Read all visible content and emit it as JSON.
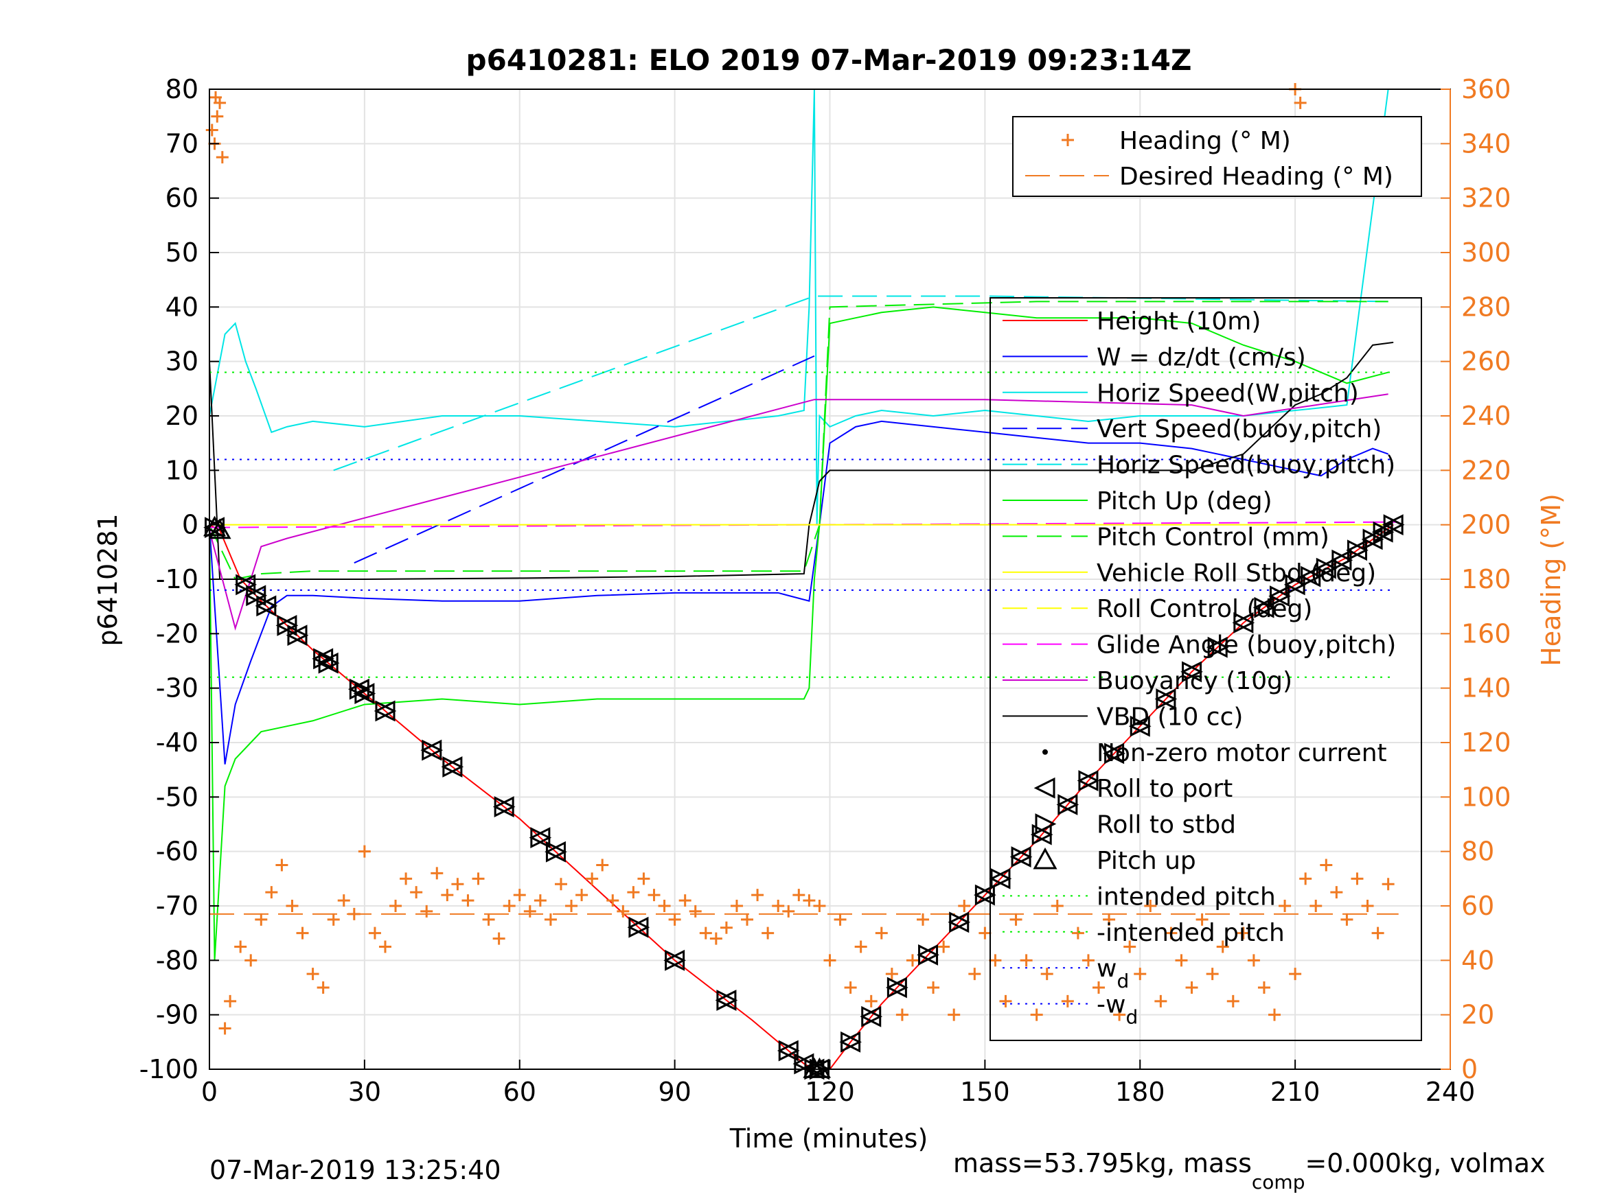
{
  "chart_data": {
    "type": "line",
    "title": "p6410281: ELO 2019 07-Mar-2019 09:23:14Z",
    "xlabel": "Time (minutes)",
    "ylabel_left": "p6410281",
    "ylabel_right": "Heading (°M)",
    "xlim": [
      0,
      240
    ],
    "ylim_left": [
      -100,
      80
    ],
    "ylim_right": [
      0,
      360
    ],
    "x_ticks": [
      "0",
      "30",
      "60",
      "90",
      "120",
      "150",
      "180",
      "210",
      "240"
    ],
    "y_ticks_left": [
      "80",
      "70",
      "60",
      "50",
      "40",
      "30",
      "20",
      "10",
      "0",
      "-10",
      "-20",
      "-30",
      "-40",
      "-50",
      "-60",
      "-70",
      "-80",
      "-90",
      "-100"
    ],
    "y_ticks_right": [
      "360",
      "340",
      "320",
      "300",
      "280",
      "260",
      "240",
      "220",
      "200",
      "180",
      "160",
      "140",
      "120",
      "100",
      "80",
      "60",
      "40",
      "20",
      "0"
    ],
    "grid": true,
    "footer_left": "07-Mar-2019 13:25:40",
    "footer_right_parts": [
      "mass=53.795kg, mass",
      "comp",
      "=0.000kg, volmax"
    ],
    "legend_heading": {
      "placement": "top-right",
      "entries": [
        {
          "label": "Heading (° M)",
          "color": "#f07a22",
          "style": "plus"
        },
        {
          "label": "Desired Heading (° M)",
          "color": "#f07a22",
          "style": "dash"
        }
      ]
    },
    "legend_main": {
      "placement": "right",
      "entries": [
        {
          "label": "Height (10m)",
          "color": "#ff0000",
          "style": "solid"
        },
        {
          "label": "W = dz/dt (cm/s)",
          "color": "#0000ff",
          "style": "solid"
        },
        {
          "label": "Horiz Speed(W,pitch)",
          "color": "#00e5e5",
          "style": "solid"
        },
        {
          "label": "Vert Speed(buoy,pitch)",
          "color": "#0000ff",
          "style": "dash"
        },
        {
          "label": "Horiz Speed(buoy,pitch)",
          "color": "#00e5e5",
          "style": "dash"
        },
        {
          "label": "Pitch Up (deg)",
          "color": "#00ee00",
          "style": "solid"
        },
        {
          "label": "Pitch Control (mm)",
          "color": "#00ee00",
          "style": "dash"
        },
        {
          "label": "Vehicle Roll Stbd (deg)",
          "color": "#ffff00",
          "style": "solid"
        },
        {
          "label": "Roll Control (deg)",
          "color": "#ffff00",
          "style": "dash"
        },
        {
          "label": "Glide Angle (buoy,pitch)",
          "color": "#ff00ff",
          "style": "dash"
        },
        {
          "label": "Buoyancy (10g)",
          "color": "#cc00cc",
          "style": "solid"
        },
        {
          "label": "VBD (10 cc)",
          "color": "#000000",
          "style": "solid"
        },
        {
          "label": "Non-zero motor current",
          "color": "#000000",
          "style": "dot"
        },
        {
          "label": "Roll to port",
          "color": "#000000",
          "style": "tri-left"
        },
        {
          "label": "Roll to stbd",
          "color": "#000000",
          "style": "tri-right"
        },
        {
          "label": "Pitch up",
          "color": "#000000",
          "style": "tri-up"
        },
        {
          "label": "intended pitch",
          "color": "#00ee00",
          "style": "dotted"
        },
        {
          "label": "-intended pitch",
          "color": "#00ee00",
          "style": "dotted"
        },
        {
          "label": "w",
          "sub": "d",
          "color": "#0000ff",
          "style": "dotted"
        },
        {
          "label": "-w",
          "sub": "d",
          "color": "#0000ff",
          "style": "dotted"
        }
      ]
    },
    "series": [
      {
        "name": "Height (10m)",
        "color": "#ff0000",
        "axis": "left",
        "x": [
          0,
          2,
          6,
          10,
          20,
          30,
          45,
          60,
          75,
          90,
          105,
          115,
          117,
          118,
          120,
          124,
          130,
          140,
          150,
          160,
          170,
          180,
          190,
          200,
          210,
          220,
          229
        ],
        "y": [
          0,
          -1,
          -10,
          -14,
          -23,
          -31,
          -43,
          -54,
          -67,
          -80,
          -91,
          -99,
          -100,
          -100,
          -100,
          -95,
          -88,
          -78,
          -68,
          -58,
          -47,
          -37,
          -27,
          -18,
          -11,
          -6,
          0
        ]
      },
      {
        "name": "W = dz/dt (cm/s)",
        "color": "#0000ff",
        "axis": "left",
        "x": [
          0,
          3,
          5,
          8,
          12,
          15,
          20,
          30,
          45,
          60,
          75,
          90,
          100,
          110,
          116,
          118,
          120,
          125,
          130,
          140,
          150,
          160,
          170,
          180,
          190,
          200,
          210,
          215,
          220,
          225,
          228
        ],
        "y": [
          0,
          -44,
          -33,
          -25,
          -15,
          -13,
          -13,
          -13.5,
          -14,
          -14,
          -13,
          -12.5,
          -12.5,
          -12.5,
          -14,
          0,
          15,
          18,
          19,
          18,
          17,
          16,
          15,
          15,
          14,
          12,
          10,
          9,
          12,
          14,
          13
        ]
      },
      {
        "name": "Horiz Speed(W,pitch)",
        "color": "#00e5e5",
        "axis": "left",
        "x": [
          0,
          3,
          5,
          7,
          9,
          12,
          15,
          20,
          30,
          45,
          60,
          75,
          90,
          100,
          110,
          115,
          116,
          117,
          117.5,
          118,
          120,
          125,
          130,
          140,
          150,
          160,
          170,
          180,
          190,
          200,
          210,
          220,
          228
        ],
        "y": [
          20,
          35,
          37,
          30,
          25,
          17,
          18,
          19,
          18,
          20,
          20,
          19,
          18,
          19,
          20,
          21,
          40,
          80,
          0,
          20,
          18,
          20,
          21,
          20,
          21,
          20,
          19,
          20,
          20,
          20,
          21,
          22,
          80
        ]
      },
      {
        "name": "Vert Speed(buoy,pitch)",
        "color": "#0000ff",
        "axis": "left",
        "dash": "36 14",
        "x": [
          28,
          117
        ],
        "y": [
          -7,
          31
        ]
      },
      {
        "name": "Horiz Speed(buoy,pitch)",
        "color": "#00e5e5",
        "axis": "left",
        "dash": "36 14",
        "x": [
          24,
          117,
          150,
          228
        ],
        "y": [
          10,
          42,
          42,
          41
        ]
      },
      {
        "name": "Pitch Up (deg)",
        "color": "#00ee00",
        "axis": "left",
        "x": [
          0,
          1,
          3,
          5,
          8,
          10,
          15,
          20,
          30,
          45,
          60,
          75,
          90,
          105,
          115,
          116,
          117,
          118,
          120,
          125,
          130,
          140,
          150,
          160,
          170,
          180,
          190,
          200,
          210,
          220,
          228
        ],
        "y": [
          0,
          -80,
          -48,
          -43,
          -40,
          -38,
          -37,
          -36,
          -33,
          -32,
          -33,
          -32,
          -32,
          -32,
          -32,
          -30,
          -10,
          0,
          37,
          38,
          39,
          40,
          39,
          38,
          38,
          38,
          37,
          33,
          30,
          26,
          28
        ]
      },
      {
        "name": "Pitch Control (mm)",
        "color": "#00ee00",
        "axis": "left",
        "dash": "30 12",
        "x": [
          0,
          5,
          10,
          20,
          60,
          100,
          115,
          118,
          120,
          160,
          200,
          228
        ],
        "y": [
          0,
          -10,
          -9,
          -8.5,
          -8.5,
          -8.5,
          -8.5,
          0,
          40,
          41,
          41,
          41
        ]
      },
      {
        "name": "VBD (10 cc)",
        "color": "#000000",
        "axis": "left",
        "x": [
          0,
          1,
          2,
          5,
          30,
          60,
          90,
          115,
          116,
          118,
          120,
          130,
          150,
          170,
          190,
          200,
          210,
          215,
          220,
          225,
          229
        ],
        "y": [
          30,
          10,
          -10,
          -10,
          -10,
          -9.8,
          -9.5,
          -9,
          0,
          8,
          10,
          10,
          10,
          10,
          10,
          13,
          22,
          24,
          27,
          33,
          33.5
        ]
      },
      {
        "name": "Buoyancy (10g)",
        "color": "#cc00cc",
        "axis": "left",
        "x": [
          0,
          5,
          8,
          10,
          15,
          117,
          150,
          190,
          200,
          228
        ],
        "y": [
          -1,
          -19,
          -10,
          -4,
          -2.5,
          23,
          23,
          22,
          20,
          24
        ]
      },
      {
        "name": "Glide Angle (buoy,pitch)",
        "color": "#ff00ff",
        "axis": "left",
        "dash": "30 12",
        "x": [
          0,
          230
        ],
        "y": [
          -0.5,
          0.5
        ]
      },
      {
        "name": "Vehicle Roll Stbd (deg)",
        "color": "#ffff00",
        "axis": "left",
        "x": [
          0,
          20,
          60,
          100,
          115,
          118,
          140,
          180,
          200,
          210,
          220,
          228
        ],
        "y": [
          0,
          0,
          0,
          0,
          0,
          0,
          0,
          0,
          0,
          0,
          0,
          0
        ]
      },
      {
        "name": "Heading (° M)",
        "color": "#f07a22",
        "axis": "right",
        "style": "plus",
        "x": [
          0.5,
          1,
          1.5,
          2,
          2.5,
          1.2,
          3,
          4,
          6,
          8,
          10,
          12,
          14,
          16,
          18,
          20,
          22,
          24,
          26,
          28,
          30,
          32,
          34,
          36,
          38,
          40,
          42,
          44,
          46,
          48,
          50,
          52,
          54,
          56,
          58,
          60,
          62,
          64,
          66,
          68,
          70,
          72,
          74,
          76,
          78,
          80,
          82,
          84,
          86,
          88,
          90,
          92,
          94,
          96,
          98,
          100,
          102,
          104,
          106,
          108,
          110,
          112,
          114,
          116,
          118,
          120,
          122,
          124,
          126,
          128,
          130,
          132,
          134,
          136,
          138,
          140,
          142,
          144,
          146,
          148,
          150,
          152,
          154,
          156,
          158,
          160,
          162,
          164,
          166,
          168,
          170,
          172,
          174,
          176,
          178,
          180,
          182,
          184,
          186,
          188,
          190,
          192,
          194,
          196,
          198,
          200,
          202,
          204,
          206,
          208,
          210,
          212,
          214,
          216,
          218,
          220,
          222,
          224,
          226,
          228,
          210,
          211
        ],
        "y": [
          345,
          340,
          350,
          355,
          335,
          357,
          15,
          25,
          45,
          40,
          55,
          65,
          75,
          60,
          50,
          35,
          30,
          55,
          62,
          57,
          80,
          50,
          45,
          60,
          70,
          65,
          58,
          72,
          64,
          68,
          62,
          70,
          55,
          48,
          60,
          64,
          58,
          62,
          55,
          68,
          60,
          64,
          70,
          75,
          62,
          58,
          65,
          70,
          64,
          60,
          55,
          62,
          58,
          50,
          48,
          52,
          60,
          55,
          64,
          50,
          60,
          58,
          64,
          62,
          60,
          40,
          55,
          30,
          45,
          25,
          50,
          35,
          20,
          40,
          55,
          30,
          45,
          20,
          60,
          35,
          50,
          40,
          25,
          55,
          40,
          20,
          35,
          60,
          25,
          50,
          40,
          30,
          55,
          20,
          45,
          35,
          60,
          25,
          50,
          40,
          30,
          55,
          35,
          45,
          25,
          50,
          40,
          30,
          20,
          60,
          35,
          70,
          60,
          75,
          65,
          55,
          70,
          60,
          50,
          68,
          360,
          355
        ]
      },
      {
        "name": "Desired Heading (° M)",
        "color": "#f07a22",
        "axis": "right",
        "dash": "36 14",
        "x": [
          0,
          230
        ],
        "y": [
          57,
          57
        ]
      }
    ],
    "reference_lines": [
      {
        "name": "intended pitch",
        "value": 28,
        "color": "#00ee00"
      },
      {
        "name": "-intended pitch",
        "value": -28,
        "color": "#00ee00"
      },
      {
        "name": "w_d",
        "value": 12,
        "color": "#0000ff"
      },
      {
        "name": "-w_d",
        "value": -12,
        "color": "#0000ff"
      }
    ],
    "markers": {
      "roll_x": [
        1,
        7,
        9,
        11,
        15,
        17,
        22,
        23,
        29,
        30,
        34,
        43,
        47,
        57,
        64,
        67,
        83,
        90,
        100,
        112,
        115,
        117,
        118,
        124,
        128,
        133,
        139,
        145,
        150,
        153,
        157,
        161,
        166,
        170,
        175,
        180,
        185,
        190,
        195,
        200,
        204,
        207,
        210,
        213,
        216,
        219,
        222,
        225,
        227,
        229
      ],
      "pitch_up_x": [
        1,
        2,
        117,
        118
      ]
    }
  }
}
